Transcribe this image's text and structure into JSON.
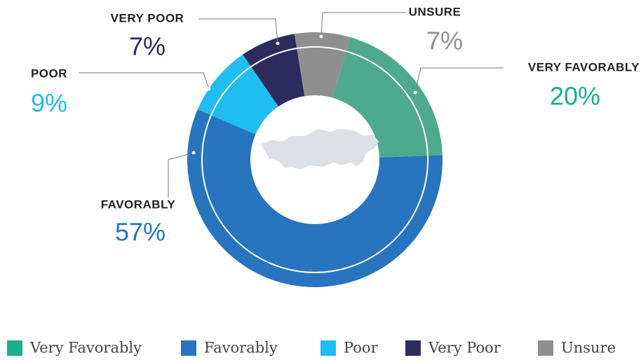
{
  "chart_data": {
    "type": "pie",
    "categories": [
      "Very Favorably",
      "Favorably",
      "Poor",
      "Very Poor",
      "Unsure"
    ],
    "callout_labels": [
      "VERY FAVORABLY",
      "FAVORABLY",
      "POOR",
      "VERY POOR",
      "UNSURE"
    ],
    "values": [
      20,
      57,
      9,
      7,
      7
    ],
    "value_labels": [
      "20%",
      "57%",
      "9%",
      "7%",
      "7%"
    ],
    "colors": [
      "#4fa98c",
      "#2874be",
      "#1fbdf0",
      "#2d2b5e",
      "#8f8f8f"
    ],
    "label_colors": [
      "#1aae8c",
      "#2874be",
      "#1fbdf0",
      "#2d2b5e",
      "#8f8f8f"
    ],
    "legend_colors": [
      "#19b08e",
      "#2874be",
      "#1fbdf0",
      "#2d2b5e",
      "#8f8f8f"
    ]
  }
}
